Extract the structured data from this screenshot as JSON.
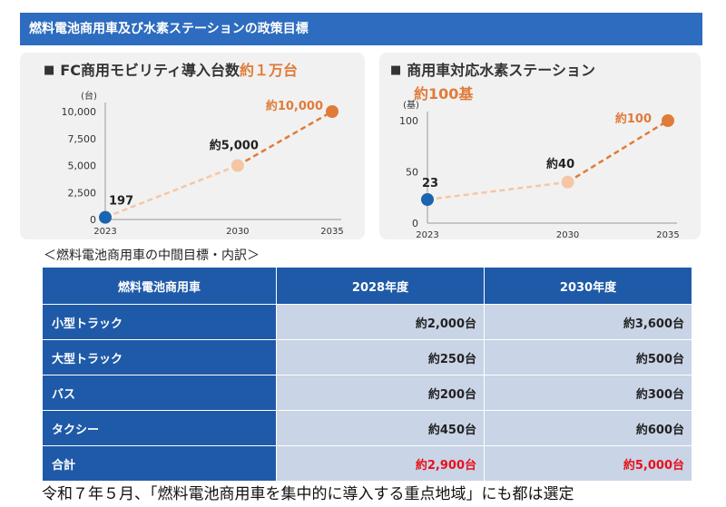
{
  "header": {
    "title": "燃料電池商用車及び水素ステーションの政策目標"
  },
  "left_panel": {
    "bullet": "■",
    "title_main": "FC商用モビリティ導入台数",
    "title_highlight": "約１万台"
  },
  "right_panel": {
    "bullet": "■",
    "title_main": "商用車対応水素ステーション",
    "subtitle": "約100基"
  },
  "chart_data": [
    {
      "type": "line",
      "title": "FC商用モビリティ導入台数約１万台",
      "ylabel": "(台)",
      "ylim": [
        0,
        10000
      ],
      "yticks": [
        "0",
        "2,500",
        "5,000",
        "7,500",
        "10,000"
      ],
      "yticks_values": [
        0,
        2500,
        5000,
        7500,
        10000
      ],
      "xticks": [
        "2023",
        "2030",
        "2035"
      ],
      "x": [
        2023,
        2030,
        2035
      ],
      "values": [
        197,
        5000,
        10000
      ],
      "point_labels": [
        "197",
        "約5,000",
        "約10,000"
      ],
      "colors": {
        "actual": "#1a64b0",
        "mid": "#f6c6a4",
        "target": "#e07b39"
      },
      "grid": false
    },
    {
      "type": "line",
      "title": "商用車対応水素ステーション約100基",
      "ylabel": "(基)",
      "ylim": [
        0,
        100
      ],
      "yticks": [
        "0",
        "50",
        "100"
      ],
      "yticks_values": [
        0,
        50,
        100
      ],
      "xticks": [
        "2023",
        "2030",
        "2035"
      ],
      "x": [
        2023,
        2030,
        2035
      ],
      "values": [
        23,
        40,
        100
      ],
      "point_labels": [
        "23",
        "約40",
        "約100"
      ],
      "colors": {
        "actual": "#1a64b0",
        "mid": "#f6c6a4",
        "target": "#e07b39"
      },
      "grid": false
    }
  ],
  "table": {
    "caption": "＜燃料電池商用車の中間目標・内訳＞",
    "headers": [
      "燃料電池商用車",
      "2028年度",
      "2030年度"
    ],
    "rows": [
      {
        "label": "小型トラック",
        "v2028": "約2,000台",
        "v2030": "約3,600台"
      },
      {
        "label": "大型トラック",
        "v2028": "約250台",
        "v2030": "約500台"
      },
      {
        "label": "バス",
        "v2028": "約200台",
        "v2030": "約300台"
      },
      {
        "label": "タクシー",
        "v2028": "約450台",
        "v2030": "約600台"
      },
      {
        "label": "合計",
        "v2028": "約2,900台",
        "v2030": "約5,000台"
      }
    ]
  },
  "footer": {
    "text": "令和７年５月、「燃料電池商用車を集中的に導入する重点地域」にも都は選定"
  }
}
